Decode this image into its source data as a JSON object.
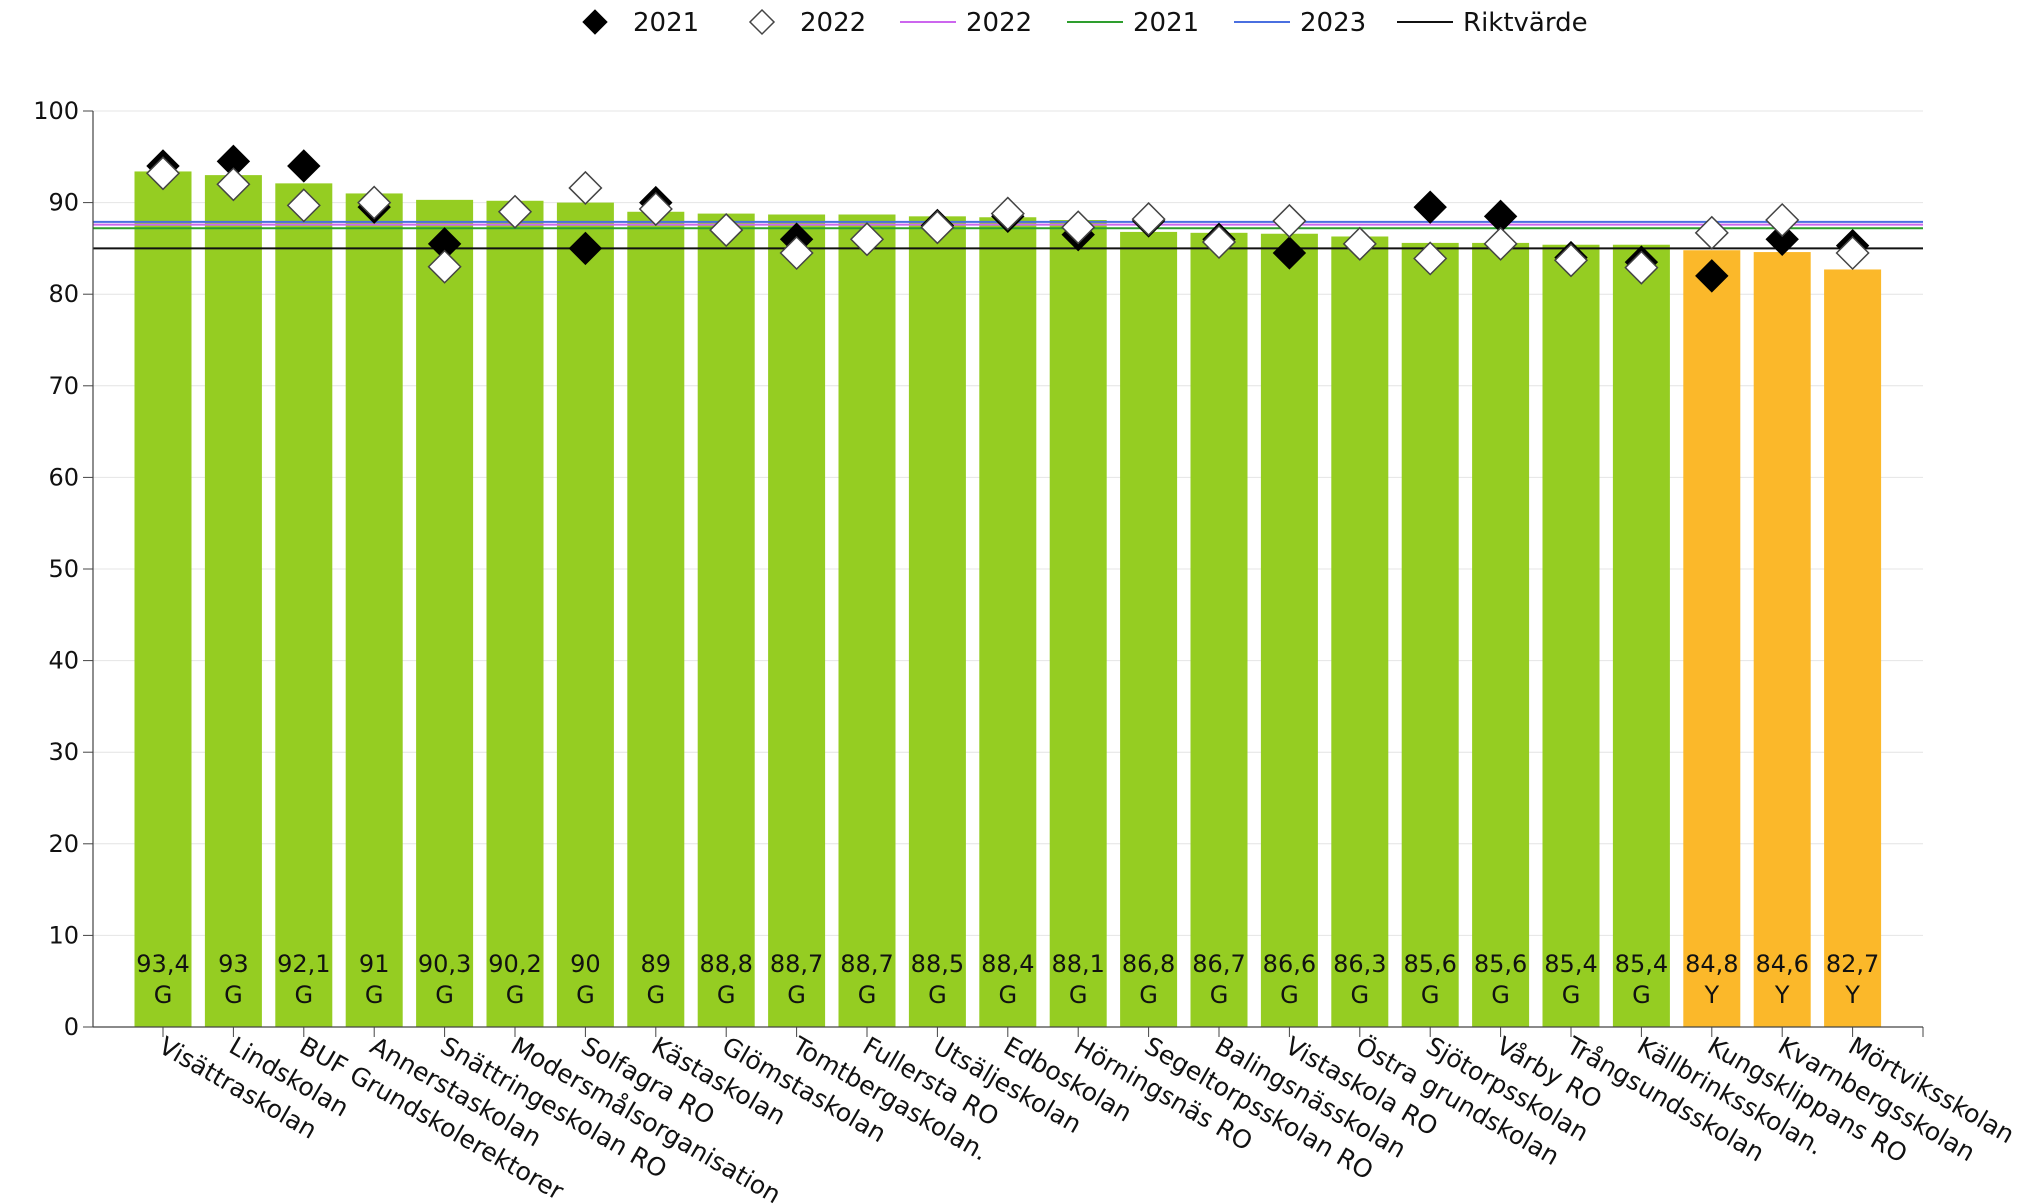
{
  "chart_data": {
    "type": "bar",
    "ylim": [
      0,
      100
    ],
    "yticks": [
      0,
      10,
      20,
      30,
      40,
      50,
      60,
      70,
      80,
      90,
      100
    ],
    "grid": true,
    "legend_position": "top-center",
    "legend": [
      {
        "label": "2021",
        "kind": "diamond-filled"
      },
      {
        "label": "2022",
        "kind": "diamond-open"
      },
      {
        "label": "2022",
        "kind": "line",
        "color": "#cc66ee"
      },
      {
        "label": "2021",
        "kind": "line",
        "color": "#2e9e2e"
      },
      {
        "label": "2023",
        "kind": "line",
        "color": "#4a6fe0"
      },
      {
        "label": "Riktvärde",
        "kind": "line",
        "color": "#111111"
      }
    ],
    "colors": {
      "G": "#95cd22",
      "Y": "#fbb82a"
    },
    "reference_lines": [
      {
        "name": "2022",
        "value": 87.6,
        "color": "#cc66ee"
      },
      {
        "name": "2021",
        "value": 87.2,
        "color": "#2e9e2e"
      },
      {
        "name": "2023",
        "value": 87.9,
        "color": "#4a6fe0"
      },
      {
        "name": "Riktvärde",
        "value": 85.0,
        "color": "#111111"
      }
    ],
    "categories": [
      "Visättraskolan",
      "Lindskolan",
      "BUF Grundskolerektorer",
      "Annerstaskolan",
      "Snättringeskolan RO",
      "Modersmålsorganisation",
      "Solfagra RO",
      "Kästaskolan",
      "Glömstaskolan",
      "Tomtbergaskolan.",
      "Fullersta RO",
      "Utsäljeskolan",
      "Edboskolan",
      "Hörningsnäs RO",
      "Segeltorpsskolan RO",
      "Balingsnässkolan",
      "Vistaskola RO",
      "Östra grundskolan",
      "Sjötorpsskolan",
      "Vårby RO",
      "Trångsundsskolan",
      "Källbrinksskolan.",
      "Kungsklippans RO",
      "Kvarnbergsskolan",
      "Mörtviksskolan"
    ],
    "values": [
      93.4,
      93,
      92.1,
      91,
      90.3,
      90.2,
      90,
      89,
      88.8,
      88.7,
      88.7,
      88.5,
      88.4,
      88.1,
      86.8,
      86.7,
      86.6,
      86.3,
      85.6,
      85.6,
      85.4,
      85.4,
      84.8,
      84.6,
      82.7
    ],
    "value_labels": [
      "93,4",
      "93",
      "92,1",
      "91",
      "90,3",
      "90,2",
      "90",
      "89",
      "88,8",
      "88,7",
      "88,7",
      "88,5",
      "88,4",
      "88,1",
      "86,8",
      "86,7",
      "86,6",
      "86,3",
      "85,6",
      "85,6",
      "85,4",
      "85,4",
      "84,8",
      "84,6",
      "82,7"
    ],
    "status": [
      "G",
      "G",
      "G",
      "G",
      "G",
      "G",
      "G",
      "G",
      "G",
      "G",
      "G",
      "G",
      "G",
      "G",
      "G",
      "G",
      "G",
      "G",
      "G",
      "G",
      "G",
      "G",
      "Y",
      "Y",
      "Y"
    ],
    "series": [
      {
        "name": "2021",
        "marker": "diamond-filled",
        "values": [
          94,
          94.5,
          94,
          89.5,
          85.5,
          89,
          85,
          90,
          87,
          86,
          86,
          87.5,
          88.5,
          86.5,
          88,
          86,
          84.5,
          85.5,
          89.5,
          88.5,
          84,
          83.5,
          82,
          86,
          85.3
        ]
      },
      {
        "name": "2022",
        "marker": "diamond-open",
        "values": [
          93.2,
          92,
          89.7,
          90,
          83,
          89,
          91.6,
          89.3,
          87,
          84.5,
          86,
          87.3,
          88.8,
          87.3,
          88.2,
          85.7,
          88,
          85.5,
          83.9,
          85.5,
          83.7,
          82.9,
          86.7,
          88.1,
          84.5
        ]
      }
    ]
  }
}
